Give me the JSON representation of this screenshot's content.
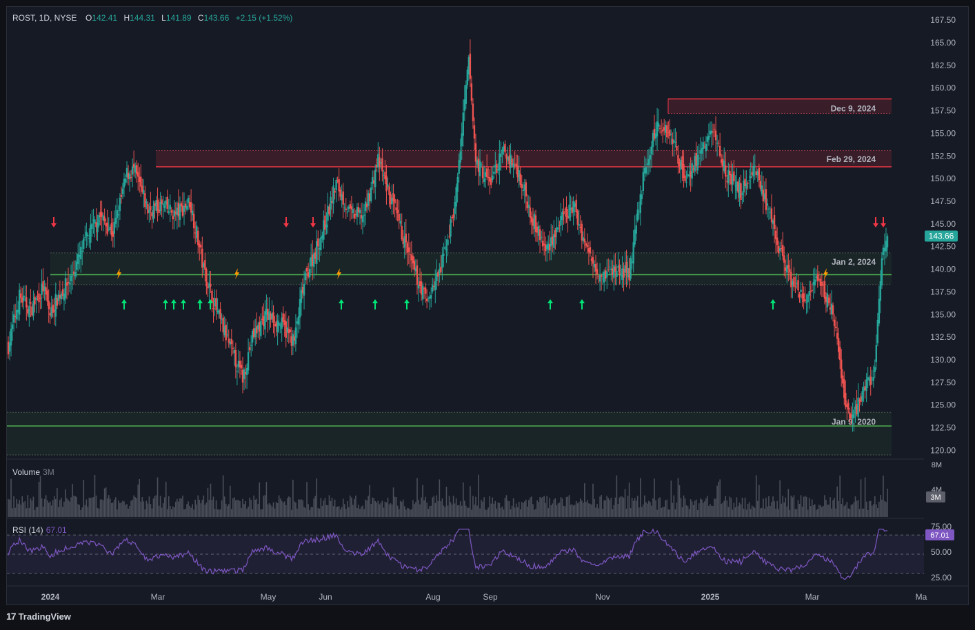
{
  "legend": {
    "symbol": "ROST, 1D, NYSE",
    "open_key": "O",
    "open": "142.41",
    "high_key": "H",
    "high": "144.31",
    "low_key": "L",
    "low": "141.89",
    "close_key": "C",
    "close": "143.66",
    "change": "+2.15 (+1.52%)"
  },
  "volume_pane": {
    "label": "Volume",
    "value": "3M",
    "axis_top": "8M",
    "axis_mid": "4M",
    "current_badge": "3M"
  },
  "rsi_pane": {
    "label": "RSI (14)",
    "value": "67.01",
    "axis": [
      "75.00",
      "50.00",
      "25.00"
    ],
    "current_badge": "67.01"
  },
  "price_badge": "143.66",
  "footer": {
    "brand": "TradingView"
  },
  "colors": {
    "up": "#26a69a",
    "down": "#ef5350",
    "rsi": "#7e57c2",
    "zone_green": "#4caf50",
    "zone_red": "#f23645",
    "lightning": "#ff9800"
  },
  "chart_data": {
    "type": "candlestick",
    "price_axis": [
      "167.50",
      "165.00",
      "162.50",
      "160.00",
      "157.50",
      "155.00",
      "152.50",
      "150.00",
      "147.50",
      "145.00",
      "142.50",
      "140.00",
      "137.50",
      "135.00",
      "132.50",
      "130.00",
      "127.50",
      "125.00",
      "122.50",
      "120.00"
    ],
    "ylim": [
      119.5,
      168.5
    ],
    "time_axis": [
      "2024",
      "Mar",
      "May",
      "Jun",
      "Aug",
      "Sep",
      "Nov",
      "2025",
      "Mar",
      "Ma"
    ],
    "zones": [
      {
        "label": "Dec 9, 2024",
        "kind": "resistance",
        "level": 158.8,
        "lower": 157.2
      },
      {
        "label": "Feb 29, 2024",
        "kind": "resistance",
        "level": 151.3,
        "lower": 153.1
      },
      {
        "label": "Jan 2, 2024",
        "kind": "support",
        "level": 139.4,
        "upper": 141.8,
        "lower": 138.3
      },
      {
        "label": "Jan 9, 2020",
        "kind": "support",
        "level": 122.7,
        "upper": 124.2,
        "lower": 119.5
      }
    ],
    "close_anchors": [
      [
        0,
        131.5
      ],
      [
        8,
        137.0
      ],
      [
        16,
        135.5
      ],
      [
        25,
        138.0
      ],
      [
        30,
        135.0
      ],
      [
        35,
        136.8
      ],
      [
        45,
        139.0
      ],
      [
        55,
        143.0
      ],
      [
        65,
        146.0
      ],
      [
        75,
        144.0
      ],
      [
        85,
        150.5
      ],
      [
        90,
        151.0
      ],
      [
        100,
        146.5
      ],
      [
        110,
        147.0
      ],
      [
        120,
        146.0
      ],
      [
        130,
        147.5
      ],
      [
        135,
        144.0
      ],
      [
        140,
        140.0
      ],
      [
        150,
        135.0
      ],
      [
        160,
        131.0
      ],
      [
        168,
        128.0
      ],
      [
        175,
        132.5
      ],
      [
        185,
        135.0
      ],
      [
        195,
        134.0
      ],
      [
        205,
        132.0
      ],
      [
        210,
        137.0
      ],
      [
        215,
        140.0
      ],
      [
        225,
        144.0
      ],
      [
        235,
        149.5
      ],
      [
        245,
        146.0
      ],
      [
        255,
        146.0
      ],
      [
        265,
        152.0
      ],
      [
        280,
        145.0
      ],
      [
        290,
        140.0
      ],
      [
        300,
        136.5
      ],
      [
        310,
        140.0
      ],
      [
        320,
        147.0
      ],
      [
        330,
        163.0
      ],
      [
        335,
        152.0
      ],
      [
        345,
        149.5
      ],
      [
        355,
        153.0
      ],
      [
        365,
        151.0
      ],
      [
        375,
        146.0
      ],
      [
        385,
        142.0
      ],
      [
        395,
        145.0
      ],
      [
        405,
        147.0
      ],
      [
        415,
        142.0
      ],
      [
        425,
        139.5
      ],
      [
        435,
        140.0
      ],
      [
        445,
        139.5
      ],
      [
        455,
        150.0
      ],
      [
        465,
        156.0
      ],
      [
        475,
        155.0
      ],
      [
        485,
        150.0
      ],
      [
        495,
        152.5
      ],
      [
        505,
        155.5
      ],
      [
        515,
        150.5
      ],
      [
        525,
        148.5
      ],
      [
        535,
        151.5
      ],
      [
        545,
        146.0
      ],
      [
        550,
        143.5
      ],
      [
        560,
        139.0
      ],
      [
        570,
        136.5
      ],
      [
        580,
        138.5
      ],
      [
        590,
        136.0
      ],
      [
        600,
        125.0
      ],
      [
        605,
        123.5
      ],
      [
        615,
        127.5
      ],
      [
        620,
        128.0
      ],
      [
        627,
        142.5
      ],
      [
        630,
        143.66
      ]
    ],
    "buy_arrow_x": [
      180,
      240,
      252,
      266,
      290,
      305,
      495,
      544,
      590,
      798,
      844,
      1121
    ],
    "sell_arrow_x": [
      78,
      415,
      454,
      1270,
      1281
    ],
    "lightning_x": [
      172,
      343,
      491,
      1197
    ],
    "lightning_price": 139.5
  }
}
